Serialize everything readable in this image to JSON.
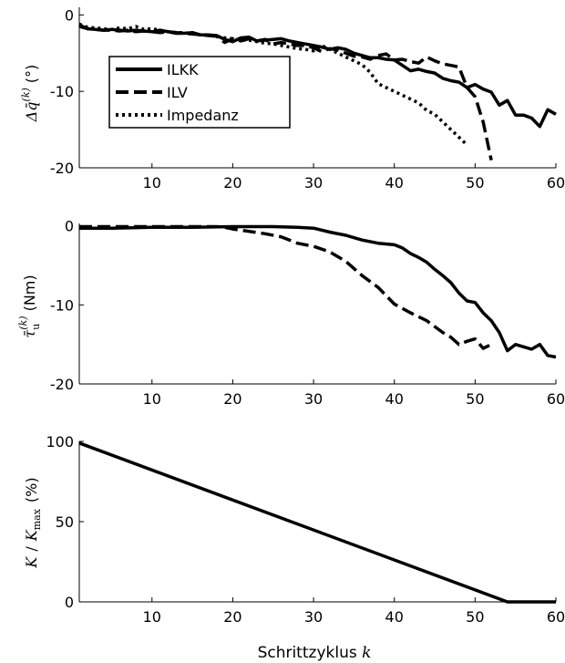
{
  "chart_data": [
    {
      "type": "line",
      "ylabel_main": "Δq̄",
      "ylabel_sup": "(k)",
      "ylabel_unit": "(°)",
      "xlim": [
        1,
        60
      ],
      "ylim": [
        -20,
        1
      ],
      "xticks": [
        "10",
        "20",
        "30",
        "40",
        "50",
        "60"
      ],
      "yticks": [
        "0",
        "-10",
        "-20"
      ],
      "legend": {
        "position": "inside-upper-left"
      },
      "series": [
        {
          "name": "ILKK",
          "style": "solid",
          "x": [
            1,
            2,
            3,
            4,
            5,
            6,
            7,
            8,
            9,
            10,
            11,
            12,
            13,
            14,
            15,
            16,
            17,
            18,
            19,
            20,
            21,
            22,
            23,
            24,
            25,
            26,
            27,
            28,
            29,
            30,
            31,
            32,
            33,
            34,
            35,
            36,
            37,
            38,
            39,
            40,
            41,
            42,
            43,
            44,
            45,
            46,
            47,
            48,
            49,
            50,
            51,
            52,
            53,
            54,
            55,
            56,
            57,
            58,
            59,
            60
          ],
          "y": [
            -1.3,
            -1.8,
            -1.9,
            -2.0,
            -1.9,
            -2.0,
            -2.1,
            -2.0,
            -2.1,
            -2.2,
            -2.0,
            -2.2,
            -2.3,
            -2.4,
            -2.3,
            -2.6,
            -2.6,
            -2.7,
            -3.2,
            -3.5,
            -3.0,
            -2.9,
            -3.4,
            -3.3,
            -3.2,
            -3.1,
            -3.4,
            -3.6,
            -3.8,
            -4.0,
            -4.2,
            -4.5,
            -4.3,
            -4.5,
            -5.0,
            -5.3,
            -5.6,
            -5.6,
            -5.8,
            -5.9,
            -6.6,
            -7.3,
            -7.1,
            -7.4,
            -7.6,
            -8.3,
            -8.6,
            -8.8,
            -9.5,
            -9.1,
            -9.7,
            -10.1,
            -11.8,
            -11.2,
            -13.1,
            -13.1,
            -13.5,
            -14.6,
            -12.4,
            -13.0
          ]
        },
        {
          "name": "ILV",
          "style": "dashed",
          "x": [
            1,
            2,
            3,
            4,
            5,
            6,
            7,
            8,
            9,
            10,
            11,
            12,
            13,
            14,
            15,
            16,
            17,
            18,
            19,
            20,
            21,
            22,
            23,
            24,
            25,
            26,
            27,
            28,
            29,
            30,
            31,
            32,
            33,
            34,
            35,
            36,
            37,
            38,
            39,
            40,
            41,
            42,
            43,
            44,
            45,
            46,
            47,
            48,
            49,
            50,
            51,
            52
          ],
          "y": [
            -1.5,
            -1.8,
            -1.9,
            -2.0,
            -2.0,
            -2.1,
            -2.0,
            -2.2,
            -2.1,
            -2.2,
            -2.3,
            -2.2,
            -2.4,
            -2.4,
            -2.5,
            -2.6,
            -2.7,
            -2.8,
            -3.6,
            -3.1,
            -3.4,
            -3.1,
            -3.4,
            -3.2,
            -3.8,
            -3.6,
            -3.8,
            -4.0,
            -4.0,
            -4.3,
            -4.8,
            -4.4,
            -4.6,
            -5.0,
            -5.4,
            -5.5,
            -5.8,
            -5.3,
            -5.1,
            -5.9,
            -5.8,
            -6.1,
            -6.3,
            -5.5,
            -6.0,
            -6.4,
            -6.6,
            -6.8,
            -9.5,
            -10.7,
            -14.0,
            -19.0
          ]
        },
        {
          "name": "Impedanz",
          "style": "dotted",
          "x": [
            1,
            2,
            3,
            4,
            5,
            6,
            7,
            8,
            9,
            10,
            11,
            12,
            13,
            14,
            15,
            16,
            17,
            18,
            19,
            20,
            21,
            22,
            23,
            24,
            25,
            26,
            27,
            28,
            29,
            30,
            31,
            32,
            33,
            34,
            35,
            36,
            37,
            38,
            39,
            40,
            41,
            42,
            43,
            44,
            45,
            46,
            47,
            48,
            49
          ],
          "y": [
            -1.2,
            -1.6,
            -1.7,
            -1.8,
            -1.9,
            -1.7,
            -1.8,
            -1.5,
            -1.9,
            -1.8,
            -2.0,
            -2.2,
            -2.3,
            -2.3,
            -2.5,
            -2.6,
            -2.7,
            -2.8,
            -3.0,
            -3.1,
            -3.3,
            -3.3,
            -3.5,
            -3.7,
            -3.8,
            -4.0,
            -4.2,
            -4.4,
            -4.5,
            -4.7,
            -4.0,
            -4.5,
            -5.0,
            -5.5,
            -6.0,
            -6.5,
            -7.5,
            -9.0,
            -9.5,
            -10.0,
            -10.5,
            -11.0,
            -11.5,
            -12.5,
            -13.0,
            -14.0,
            -15.0,
            -16.0,
            -17.0
          ]
        }
      ]
    },
    {
      "type": "line",
      "ylabel_main": "τ̄",
      "ylabel_sub": "u",
      "ylabel_sup": "(k)",
      "ylabel_unit": "(Nm)",
      "xlim": [
        1,
        60
      ],
      "ylim": [
        -20,
        0.3
      ],
      "xticks": [
        "10",
        "20",
        "30",
        "40",
        "50",
        "60"
      ],
      "yticks": [
        "0",
        "-10",
        "-20"
      ],
      "series": [
        {
          "name": "ILKK",
          "style": "solid",
          "x": [
            1,
            5,
            10,
            15,
            20,
            22,
            25,
            28,
            30,
            32,
            34,
            36,
            38,
            40,
            41,
            42,
            43,
            44,
            45,
            46,
            47,
            48,
            49,
            50,
            51,
            52,
            53,
            54,
            55,
            56,
            57,
            58,
            59,
            60
          ],
          "y": [
            -0.3,
            -0.3,
            -0.2,
            -0.2,
            -0.1,
            -0.1,
            -0.1,
            -0.2,
            -0.3,
            -0.8,
            -1.2,
            -1.8,
            -2.2,
            -2.4,
            -2.8,
            -3.5,
            -4.0,
            -4.6,
            -5.5,
            -6.3,
            -7.2,
            -8.5,
            -9.5,
            -9.7,
            -11.0,
            -12.0,
            -13.5,
            -15.8,
            -15.0,
            -15.3,
            -15.6,
            -15.0,
            -16.4,
            -16.6
          ]
        },
        {
          "name": "ILV",
          "style": "dashed",
          "x": [
            1,
            5,
            10,
            15,
            18,
            19,
            20,
            22,
            24,
            26,
            28,
            30,
            32,
            34,
            36,
            38,
            40,
            42,
            44,
            46,
            47,
            48,
            49,
            50,
            51,
            52
          ],
          "y": [
            -0.1,
            -0.1,
            -0.1,
            -0.1,
            -0.1,
            -0.2,
            -0.4,
            -0.7,
            -1.0,
            -1.4,
            -2.2,
            -2.6,
            -3.3,
            -4.5,
            -6.3,
            -7.8,
            -9.9,
            -11.0,
            -12.0,
            -13.5,
            -14.1,
            -15.0,
            -14.6,
            -14.3,
            -15.5,
            -15.0
          ]
        }
      ]
    },
    {
      "type": "line",
      "ylabel_main": "K",
      "ylabel_mid": "/",
      "ylabel_denom": "K",
      "ylabel_denom_sub": "max",
      "ylabel_unit": "(%)",
      "xlabel_text": "Schrittzyklus",
      "xlabel_var": "k",
      "xlim": [
        1,
        60
      ],
      "ylim": [
        0,
        100
      ],
      "xticks": [
        "10",
        "20",
        "30",
        "40",
        "50",
        "60"
      ],
      "yticks": [
        "100",
        "50",
        "0"
      ],
      "series": [
        {
          "name": "ILKK",
          "style": "solid",
          "x": [
            1,
            54,
            55,
            60
          ],
          "y": [
            99,
            0,
            0,
            0
          ]
        }
      ]
    }
  ]
}
